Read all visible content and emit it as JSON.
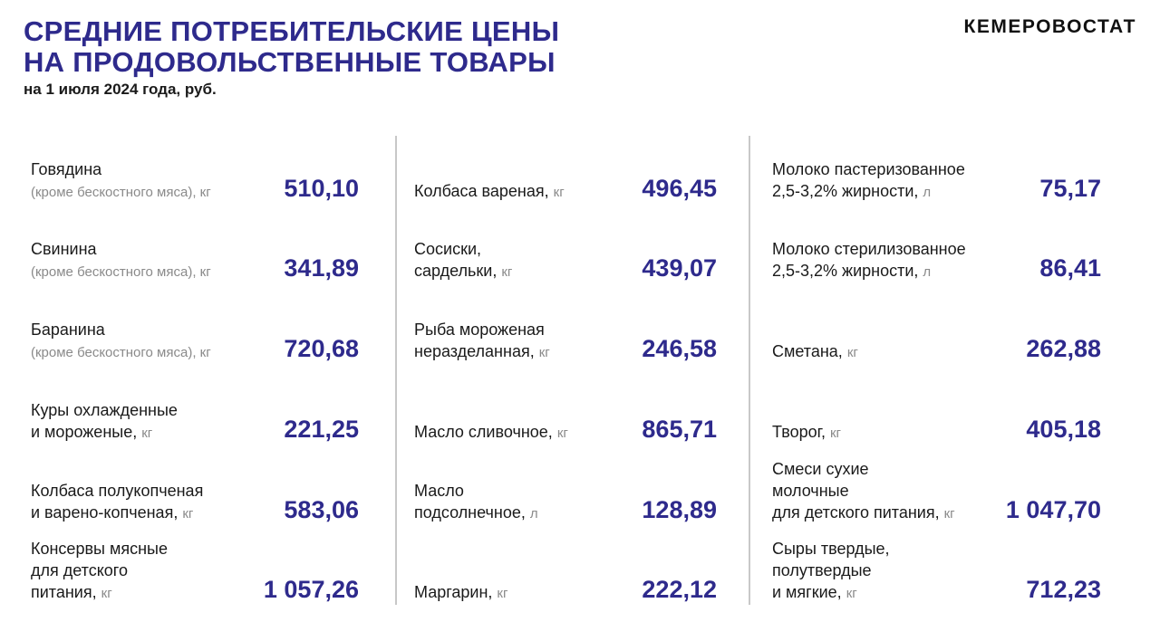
{
  "header": {
    "title_line1": "СРЕДНИЕ ПОТРЕБИТЕЛЬСКИЕ ЦЕНЫ",
    "title_line2": "НА ПРОДОВОЛЬСТВЕННЫЕ ТОВАРЫ",
    "subtitle": "на 1 июля 2024 года, руб.",
    "brand": "КЕМЕРОВОСТАТ"
  },
  "columns": [
    {
      "items": [
        {
          "name": "Говядина",
          "note": "(кроме бескостного мяса)",
          "unit": "кг",
          "value": "510,10"
        },
        {
          "name": "Свинина",
          "note": "(кроме бескостного мяса)",
          "unit": "кг",
          "value": "341,89"
        },
        {
          "name": "Баранина",
          "note": "(кроме бескостного мяса)",
          "unit": "кг",
          "value": "720,68"
        },
        {
          "lines": [
            "Куры охлажденные",
            "и мороженые,"
          ],
          "unit": "кг",
          "value": "221,25"
        },
        {
          "lines": [
            "Колбаса полукопченая",
            "и варено-копченая,"
          ],
          "unit": "кг",
          "value": "583,06"
        },
        {
          "lines": [
            "Консервы мясные",
            "для детского",
            "питания,"
          ],
          "unit": "кг",
          "value": "1 057,26"
        }
      ]
    },
    {
      "items": [
        {
          "lines": [
            "Колбаса вареная,"
          ],
          "unit": "кг",
          "value": "496,45"
        },
        {
          "lines": [
            "Сосиски,",
            "сардельки,"
          ],
          "unit": "кг",
          "value": "439,07"
        },
        {
          "lines": [
            "Рыба мороженая",
            "неразделанная,"
          ],
          "unit": "кг",
          "value": "246,58"
        },
        {
          "lines": [
            "Масло сливочное,"
          ],
          "unit": "кг",
          "value": "865,71"
        },
        {
          "lines": [
            "Масло",
            "подсолнечное,"
          ],
          "unit": "л",
          "value": "128,89"
        },
        {
          "lines": [
            "Маргарин,"
          ],
          "unit": "кг",
          "value": "222,12"
        }
      ]
    },
    {
      "items": [
        {
          "lines": [
            "Молоко пастеризованное",
            "2,5-3,2% жирности,"
          ],
          "unit": "л",
          "value": "75,17"
        },
        {
          "lines": [
            "Молоко стерилизованное",
            "2,5-3,2% жирности,"
          ],
          "unit": "л",
          "value": "86,41"
        },
        {
          "lines": [
            "Сметана,"
          ],
          "unit": "кг",
          "value": "262,88"
        },
        {
          "lines": [
            "Творог,"
          ],
          "unit": "кг",
          "value": "405,18"
        },
        {
          "lines": [
            "Смеси сухие",
            "молочные",
            "для детского питания,"
          ],
          "unit": "кг",
          "value": "1 047,70"
        },
        {
          "lines": [
            "Сыры твердые,",
            "полутвердые",
            "и мягкие,"
          ],
          "unit": "кг",
          "value": "712,23"
        }
      ]
    }
  ]
}
